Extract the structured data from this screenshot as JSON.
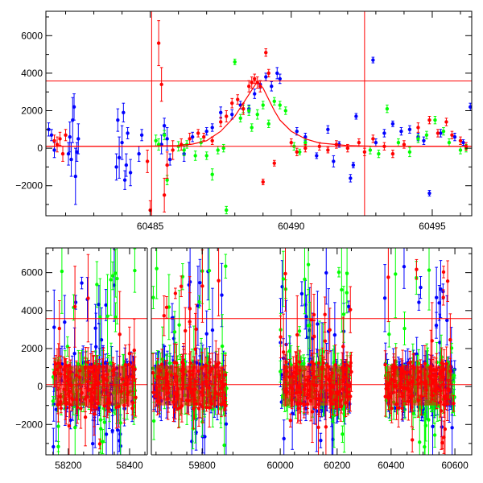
{
  "colors": {
    "model": "#ff0000",
    "blue": "#0000ff",
    "green": "#00ff00",
    "red": "#ff0000",
    "frame": "#000000"
  },
  "chart_data": [
    {
      "type": "scatter",
      "panel": "top",
      "title": "",
      "xlabel": "",
      "ylabel": "",
      "xlim": [
        60481.3,
        60496.4
      ],
      "ylim": [
        -3600,
        7300
      ],
      "grid": false,
      "x_ticks": [
        60485,
        60490,
        60495
      ],
      "y_ticks": [
        -2000,
        0,
        2000,
        4000,
        6000
      ],
      "reference_hlines": [
        3580,
        100
      ],
      "reference_vlines": [
        60485.05,
        60492.6
      ],
      "model_curve": {
        "x": [
          60481.3,
          60484,
          60485,
          60486,
          60486.5,
          60487,
          60487.5,
          60488,
          60488.3,
          60488.6,
          60488.8,
          60489,
          60489.2,
          60489.4,
          60489.6,
          60490,
          60490.5,
          60491,
          60492,
          60493,
          60496.4
        ],
        "y": [
          100,
          100,
          110,
          140,
          220,
          400,
          900,
          1700,
          2400,
          3100,
          3550,
          3200,
          2600,
          2000,
          1500,
          900,
          500,
          280,
          140,
          105,
          100
        ]
      },
      "series": [
        {
          "color": "blue",
          "points": [
            [
              60481.4,
              1000,
              350
            ],
            [
              60481.5,
              700,
              300
            ],
            [
              60481.6,
              -100,
              400
            ],
            [
              60482.1,
              -300,
              600
            ],
            [
              60482.15,
              600,
              800
            ],
            [
              60482.2,
              -600,
              900
            ],
            [
              60482.25,
              1500,
              1200
            ],
            [
              60482.3,
              2200,
              700
            ],
            [
              60482.35,
              -1500,
              1500
            ],
            [
              60482.4,
              -200,
              500
            ],
            [
              60482.45,
              500,
              800
            ],
            [
              60483.8,
              -1000,
              700
            ],
            [
              60483.85,
              1500,
              600
            ],
            [
              60483.9,
              -500,
              1100
            ],
            [
              60484.0,
              300,
              900
            ],
            [
              60484.05,
              1900,
              500
            ],
            [
              60484.1,
              -1700,
              500
            ],
            [
              60484.15,
              -900,
              600
            ],
            [
              60484.2,
              800,
              300
            ],
            [
              60484.3,
              -1300,
              700
            ],
            [
              60484.6,
              -300,
              400
            ],
            [
              60484.7,
              700,
              300
            ],
            [
              60485.4,
              200,
              500
            ],
            [
              60485.5,
              1200,
              400
            ],
            [
              60485.6,
              500,
              600
            ],
            [
              60485.7,
              -600,
              300
            ],
            [
              60486.2,
              -300,
              400
            ],
            [
              60486.5,
              600,
              250
            ],
            [
              60487.0,
              900,
              200
            ],
            [
              60487.2,
              1100,
              200
            ],
            [
              60487.5,
              1900,
              300
            ],
            [
              60487.9,
              1800,
              250
            ],
            [
              60488.2,
              2300,
              200
            ],
            [
              60488.5,
              2100,
              200
            ],
            [
              60488.7,
              2900,
              250
            ],
            [
              60488.9,
              3400,
              200
            ],
            [
              60489.1,
              3800,
              200
            ],
            [
              60489.3,
              3300,
              250
            ],
            [
              60489.5,
              4000,
              300
            ],
            [
              60489.6,
              3700,
              250
            ],
            [
              60490.2,
              900,
              200
            ],
            [
              60490.5,
              600,
              200
            ],
            [
              60490.9,
              -400,
              150
            ],
            [
              60491.3,
              1000,
              200
            ],
            [
              60491.5,
              -700,
              300
            ],
            [
              60491.7,
              200,
              150
            ],
            [
              60492.1,
              -1600,
              200
            ],
            [
              60492.2,
              -900,
              150
            ],
            [
              60492.3,
              1700,
              150
            ],
            [
              60492.9,
              4700,
              150
            ],
            [
              60493.0,
              300,
              200
            ],
            [
              60493.3,
              800,
              200
            ],
            [
              60493.6,
              1300,
              150
            ],
            [
              60493.9,
              900,
              200
            ],
            [
              60494.2,
              1000,
              200
            ],
            [
              60494.5,
              600,
              200
            ],
            [
              60494.7,
              400,
              200
            ],
            [
              60494.9,
              -2400,
              150
            ],
            [
              60495.3,
              800,
              200
            ],
            [
              60495.8,
              600,
              200
            ],
            [
              60496.1,
              300,
              150
            ],
            [
              60496.35,
              2200,
              200
            ]
          ]
        },
        {
          "color": "green",
          "points": [
            [
              60485.2,
              400,
              300
            ],
            [
              60485.3,
              200,
              300
            ],
            [
              60485.5,
              700,
              250
            ],
            [
              60485.6,
              -1700,
              250
            ],
            [
              60486.0,
              100,
              250
            ],
            [
              60486.2,
              -100,
              300
            ],
            [
              60486.3,
              200,
              200
            ],
            [
              60486.6,
              -400,
              250
            ],
            [
              60486.8,
              300,
              200
            ],
            [
              60487.0,
              -400,
              200
            ],
            [
              60487.2,
              -1400,
              300
            ],
            [
              60487.4,
              -100,
              200
            ],
            [
              60487.6,
              0,
              200
            ],
            [
              60487.7,
              -3300,
              200
            ],
            [
              60488.0,
              4600,
              150
            ],
            [
              60488.2,
              1600,
              200
            ],
            [
              60488.3,
              2100,
              200
            ],
            [
              60488.5,
              2000,
              250
            ],
            [
              60488.6,
              1100,
              200
            ],
            [
              60488.8,
              1800,
              250
            ],
            [
              60489.0,
              2300,
              200
            ],
            [
              60489.2,
              1300,
              200
            ],
            [
              60489.4,
              2500,
              200
            ],
            [
              60489.6,
              2300,
              200
            ],
            [
              60489.8,
              2000,
              200
            ],
            [
              60490.1,
              100,
              200
            ],
            [
              60490.3,
              -200,
              150
            ],
            [
              60490.5,
              300,
              150
            ],
            [
              60492.8,
              -100,
              200
            ],
            [
              60493.1,
              -300,
              200
            ],
            [
              60493.4,
              2100,
              200
            ],
            [
              60493.8,
              300,
              200
            ],
            [
              60494.2,
              -200,
              250
            ],
            [
              60494.5,
              500,
              200
            ],
            [
              60494.8,
              700,
              200
            ],
            [
              60495.1,
              1500,
              200
            ],
            [
              60495.4,
              900,
              200
            ],
            [
              60495.6,
              300,
              200
            ],
            [
              60496.0,
              -100,
              200
            ],
            [
              60496.2,
              0,
              200
            ]
          ]
        },
        {
          "color": "red",
          "points": [
            [
              60481.6,
              400,
              300
            ],
            [
              60481.7,
              200,
              400
            ],
            [
              60481.8,
              500,
              350
            ],
            [
              60481.9,
              -300,
              400
            ],
            [
              60482.0,
              700,
              300
            ],
            [
              60484.9,
              -700,
              600
            ],
            [
              60485.0,
              -3300,
              500
            ],
            [
              60485.3,
              5600,
              1200
            ],
            [
              60485.4,
              3400,
              900
            ],
            [
              60485.5,
              -2500,
              900
            ],
            [
              60485.6,
              -900,
              700
            ],
            [
              60485.8,
              -100,
              500
            ],
            [
              60486.1,
              200,
              300
            ],
            [
              60486.4,
              500,
              300
            ],
            [
              60486.7,
              800,
              200
            ],
            [
              60486.9,
              600,
              200
            ],
            [
              60487.2,
              400,
              200
            ],
            [
              60487.5,
              1400,
              250
            ],
            [
              60487.7,
              1700,
              300
            ],
            [
              60487.9,
              2400,
              250
            ],
            [
              60488.1,
              2600,
              250
            ],
            [
              60488.3,
              2100,
              300
            ],
            [
              60488.5,
              3300,
              300
            ],
            [
              60488.6,
              3500,
              300
            ],
            [
              60488.7,
              3700,
              250
            ],
            [
              60488.8,
              3500,
              300
            ],
            [
              60488.9,
              3300,
              300
            ],
            [
              60489.0,
              -1800,
              150
            ],
            [
              60489.1,
              5100,
              200
            ],
            [
              60489.2,
              4000,
              200
            ],
            [
              60489.4,
              -800,
              150
            ],
            [
              60490.0,
              300,
              200
            ],
            [
              60490.2,
              -200,
              200
            ],
            [
              60490.5,
              0,
              200
            ],
            [
              60491.0,
              100,
              200
            ],
            [
              60491.3,
              -100,
              150
            ],
            [
              60491.6,
              200,
              200
            ],
            [
              60492.0,
              0,
              200
            ],
            [
              60492.4,
              300,
              200
            ],
            [
              60492.6,
              -200,
              200
            ],
            [
              60492.9,
              500,
              200
            ],
            [
              60493.3,
              100,
              200
            ],
            [
              60493.6,
              -300,
              200
            ],
            [
              60494.0,
              200,
              200
            ],
            [
              60494.5,
              1100,
              250
            ],
            [
              60494.9,
              1500,
              200
            ],
            [
              60495.2,
              800,
              200
            ],
            [
              60495.5,
              1400,
              200
            ],
            [
              60495.7,
              700,
              200
            ],
            [
              60496.0,
              400,
              200
            ],
            [
              60496.2,
              100,
              200
            ]
          ]
        }
      ]
    },
    {
      "type": "scatter",
      "panel": "bottom",
      "title": "",
      "xlabel": "",
      "ylabel": "",
      "xlim_segments": [
        [
          58140,
          58450
        ],
        [
          59640,
          59920
        ],
        [
          59960,
          60260
        ],
        [
          60360,
          60620
        ]
      ],
      "ylim": [
        -3600,
        7300
      ],
      "grid": false,
      "x_ticks": [
        58200,
        58400,
        59800,
        60000,
        60200,
        60400,
        60600
      ],
      "y_ticks": [
        -2000,
        0,
        2000,
        4000,
        6000
      ],
      "reference_hlines": [
        3580,
        100
      ],
      "observing_seasons": [
        {
          "x_range": [
            58150,
            58420
          ],
          "band_lo": -1200,
          "band_hi": 1300
        },
        {
          "x_range": [
            59640,
            59880
          ],
          "band_lo": -1200,
          "band_hi": 1300
        },
        {
          "x_range": [
            60000,
            60250
          ],
          "band_lo": -1200,
          "band_hi": 1300
        },
        {
          "x_range": [
            60380,
            60600
          ],
          "band_lo": -1200,
          "band_hi": 1300
        }
      ],
      "series_colors": [
        "blue",
        "green",
        "red"
      ],
      "points_per_season_per_series": 110
    }
  ]
}
